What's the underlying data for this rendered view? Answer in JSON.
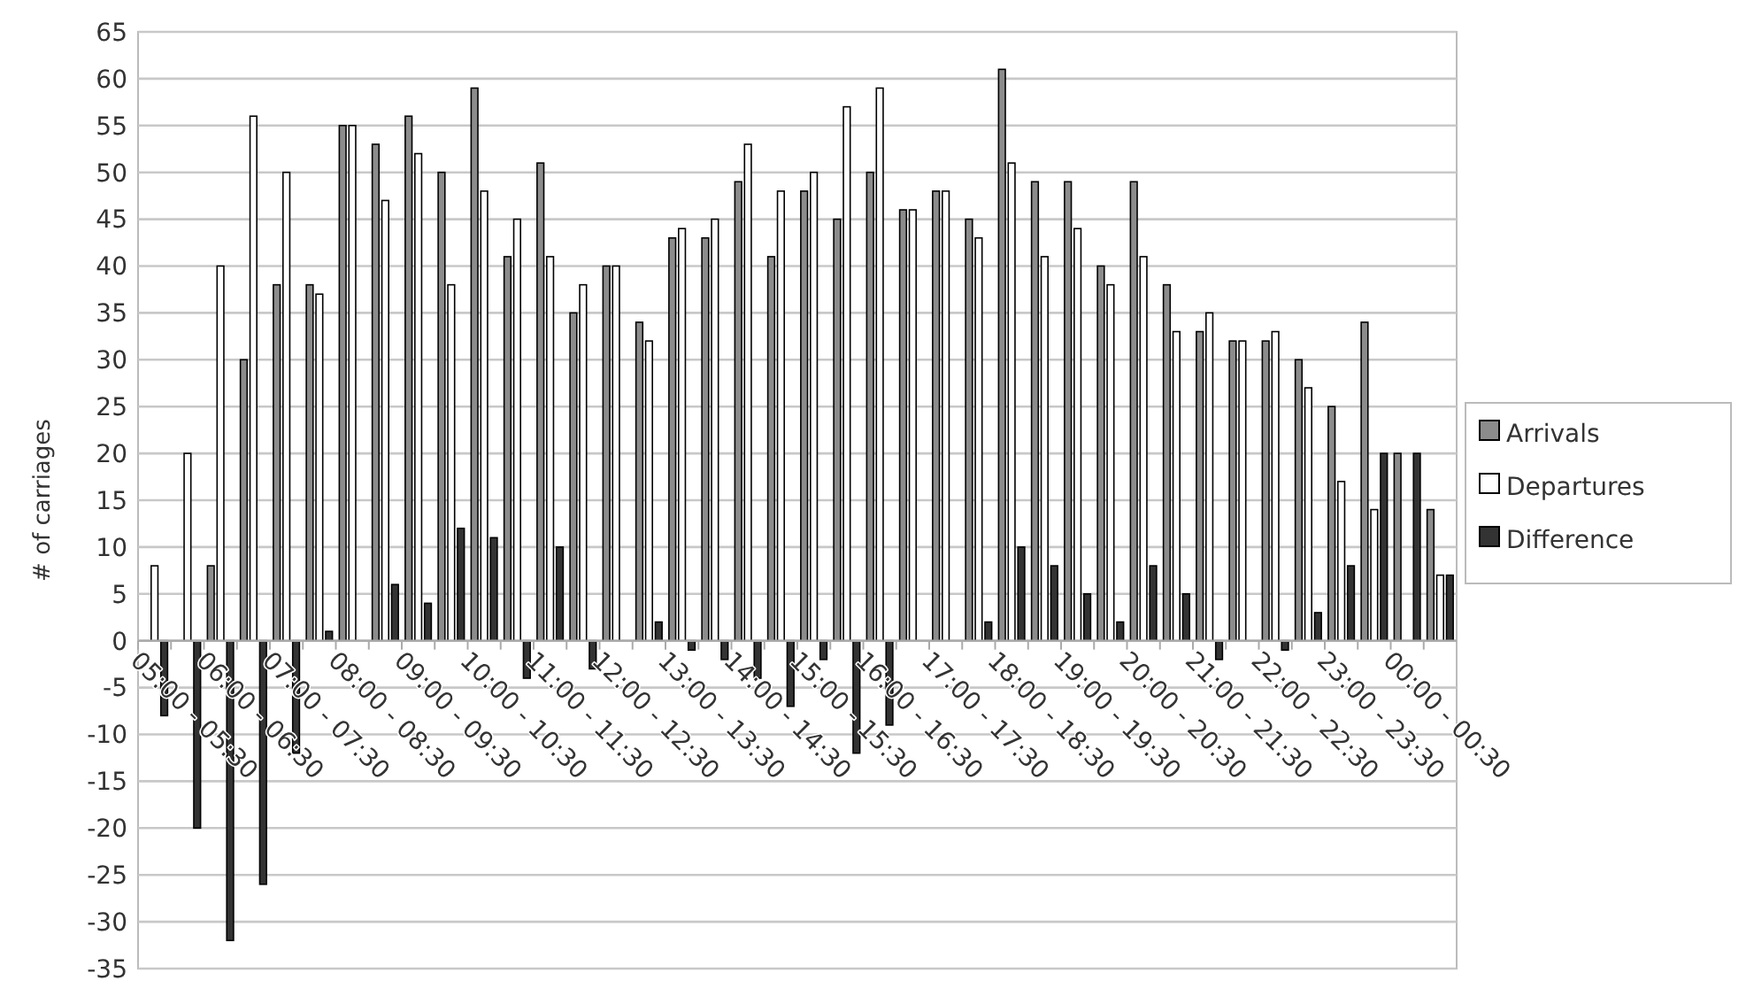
{
  "chart_data": {
    "type": "bar",
    "ylabel": "# of carriages",
    "categories": [
      null,
      "05:00 - 05:30",
      null,
      "06:00 - 06:30",
      null,
      "07:00 - 07:30",
      null,
      "08:00 - 08:30",
      null,
      "09:00 - 09:30",
      null,
      "10:00 - 10:30",
      null,
      "11:00 - 11:30",
      null,
      "12:00 - 12:30",
      null,
      "13:00 - 13:30",
      null,
      "14:00 - 14:30",
      null,
      "15:00 - 15:30",
      null,
      "16:00 - 16:30",
      null,
      "17:00 - 17:30",
      null,
      "18:00 - 18:30",
      null,
      "19:00 - 19:30",
      null,
      "20:00 - 20:30",
      null,
      "21:00 - 21:30",
      null,
      "22:00 - 22:30",
      null,
      "23:00 - 23:30",
      null,
      "00:00 - 00:30"
    ],
    "series": [
      {
        "name": "Arrivals",
        "color": "#8c8c8c",
        "values": [
          0,
          0,
          8,
          30,
          38,
          38,
          55,
          53,
          56,
          50,
          59,
          41,
          51,
          35,
          40,
          34,
          43,
          43,
          49,
          41,
          48,
          45,
          50,
          46,
          48,
          45,
          61,
          49,
          49,
          40,
          49,
          38,
          33,
          32,
          32,
          30,
          25,
          34,
          20,
          14
        ]
      },
      {
        "name": "Departures",
        "color": "#ffffff",
        "values": [
          8,
          20,
          40,
          56,
          50,
          37,
          55,
          47,
          52,
          38,
          48,
          45,
          41,
          38,
          40,
          32,
          44,
          45,
          53,
          48,
          50,
          57,
          59,
          46,
          48,
          43,
          51,
          41,
          44,
          38,
          41,
          33,
          35,
          32,
          33,
          27,
          17,
          14,
          0,
          7
        ]
      },
      {
        "name": "Difference",
        "color": "#333333",
        "values": [
          -8,
          -20,
          -32,
          -26,
          -12,
          1,
          0,
          6,
          4,
          12,
          11,
          -4,
          10,
          -3,
          0,
          2,
          -1,
          -2,
          -4,
          -7,
          -2,
          -12,
          -9,
          0,
          0,
          2,
          10,
          8,
          5,
          2,
          8,
          5,
          -2,
          0,
          -1,
          3,
          8,
          20,
          20,
          7
        ]
      }
    ],
    "ylim": [
      -35,
      65
    ],
    "yticks": [
      -35,
      -30,
      -25,
      -20,
      -15,
      -10,
      -5,
      0,
      5,
      10,
      15,
      20,
      25,
      30,
      35,
      40,
      45,
      50,
      55,
      60,
      65
    ],
    "grid": "y",
    "legend": "right"
  }
}
